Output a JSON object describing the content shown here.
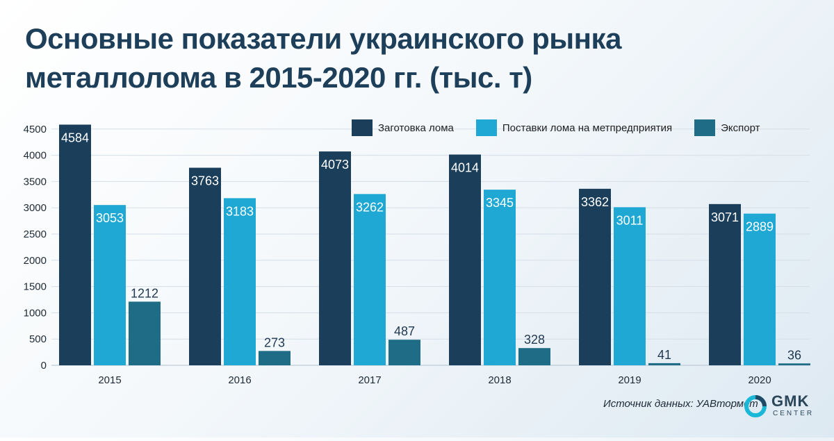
{
  "title_lines": [
    "Основные показатели украинского рынка",
    "металлолома в 2015-2020 гг. (тыс. т)"
  ],
  "legend": {
    "items": [
      {
        "label": "Заготовка лома",
        "color": "#1b3f5b"
      },
      {
        "label": "Поставки лома на метпредприятия",
        "color": "#1fa8d3"
      },
      {
        "label": "Экспорт",
        "color": "#1e6c85"
      }
    ]
  },
  "source": {
    "text": "Источник данных: УАВтормет"
  },
  "logo": {
    "text": "GMK",
    "subtext": "CENTER",
    "colors": [
      "#19b8d7",
      "#1f4b66"
    ]
  },
  "chart_data": {
    "type": "bar",
    "title": "Основные показатели украинского рынка металлолома в 2015-2020 гг. (тыс. т)",
    "categories": [
      "2015",
      "2016",
      "2017",
      "2018",
      "2019",
      "2020"
    ],
    "series": [
      {
        "name": "Заготовка лома",
        "values": [
          4584,
          3763,
          4073,
          4014,
          3362,
          3071
        ],
        "color": "#1b3f5b",
        "label_color": "#ffffff",
        "label_position": "inside-top"
      },
      {
        "name": "Поставки лома на метпредприятия",
        "values": [
          3053,
          3183,
          3262,
          3345,
          3011,
          2889
        ],
        "color": "#1fa8d3",
        "label_color": "#ffffff",
        "label_position": "inside-top"
      },
      {
        "name": "Экспорт",
        "values": [
          1212,
          273,
          487,
          328,
          41,
          36
        ],
        "color": "#1e6c85",
        "label_color": "#1f3850",
        "label_position": "above"
      }
    ],
    "y_ticks": [
      0,
      500,
      1000,
      1500,
      2000,
      2500,
      3000,
      3500,
      4000,
      4500
    ],
    "ylim": [
      0,
      4700
    ],
    "grid": true,
    "legend_position": "top-right"
  }
}
